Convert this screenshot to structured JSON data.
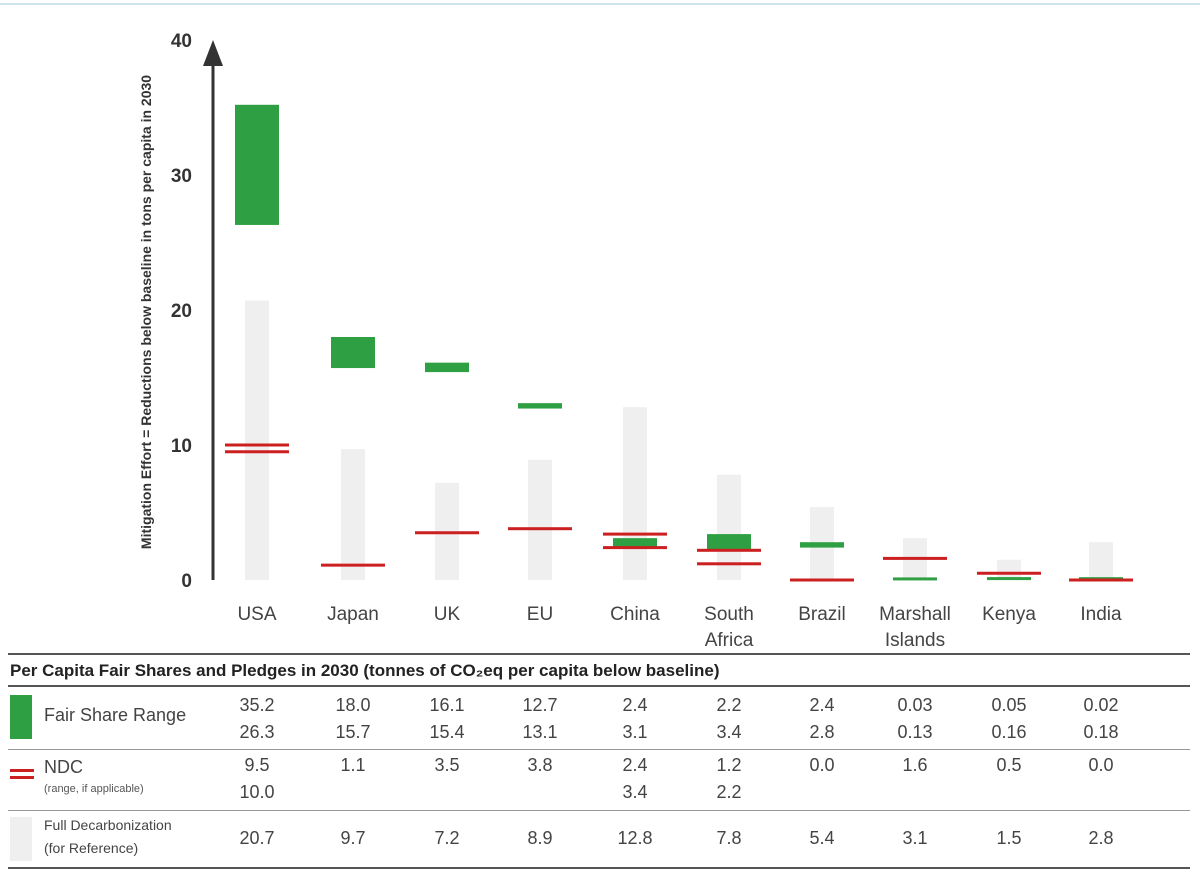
{
  "chart_data": {
    "type": "bar",
    "title": "",
    "ylabel": "Mitigation Effort = Reductions  below baseline in tons per capita in 2030",
    "xlabel": "",
    "ylim": [
      0,
      40
    ],
    "yticks": [
      "0",
      "10",
      "20",
      "30",
      "40"
    ],
    "categories": [
      {
        "lines": [
          "USA"
        ]
      },
      {
        "lines": [
          "Japan"
        ]
      },
      {
        "lines": [
          "UK"
        ]
      },
      {
        "lines": [
          "EU"
        ]
      },
      {
        "lines": [
          "China"
        ]
      },
      {
        "lines": [
          "South",
          "Africa"
        ]
      },
      {
        "lines": [
          "Brazil"
        ]
      },
      {
        "lines": [
          "Marshall",
          "Islands"
        ]
      },
      {
        "lines": [
          "Kenya"
        ]
      },
      {
        "lines": [
          "India"
        ]
      }
    ],
    "series": [
      {
        "name": "Fair Share Range",
        "kind": "range",
        "color": "#2ea043",
        "values": [
          [
            26.3,
            35.2
          ],
          [
            15.7,
            18.0
          ],
          [
            15.4,
            16.1
          ],
          [
            12.7,
            13.1
          ],
          [
            2.4,
            3.1
          ],
          [
            2.2,
            3.4
          ],
          [
            2.4,
            2.8
          ],
          [
            0.03,
            0.13
          ],
          [
            0.05,
            0.16
          ],
          [
            0.02,
            0.18
          ]
        ]
      },
      {
        "name": "NDC",
        "kind": "line",
        "color": "#cc1f1f",
        "values": [
          [
            9.5,
            10.0
          ],
          [
            1.1
          ],
          [
            3.5
          ],
          [
            3.8
          ],
          [
            2.4,
            3.4
          ],
          [
            1.2,
            2.2
          ],
          [
            0.0
          ],
          [
            1.6
          ],
          [
            0.5
          ],
          [
            0.0
          ]
        ]
      },
      {
        "name": "Full Decarbonization",
        "kind": "bar",
        "color": "#efefef",
        "values": [
          20.7,
          9.7,
          7.2,
          8.9,
          12.8,
          7.8,
          5.4,
          3.1,
          1.5,
          2.8
        ]
      }
    ]
  },
  "table": {
    "title": "Per Capita Fair Shares and Pledges in 2030 (tonnes of CO₂eq per capita below baseline)",
    "fair_share": {
      "label": "Fair Share Range",
      "top": [
        "35.2",
        "18.0",
        "16.1",
        "12.7",
        "2.4",
        "2.2",
        "2.4",
        "0.03",
        "0.05",
        "0.02"
      ],
      "bottom": [
        "26.3",
        "15.7",
        "15.4",
        "13.1",
        "3.1",
        "3.4",
        "2.8",
        "0.13",
        "0.16",
        "0.18"
      ]
    },
    "ndc": {
      "label": "NDC",
      "sublabel": "(range, if applicable)",
      "top": [
        "9.5",
        "1.1",
        "3.5",
        "3.8",
        "2.4",
        "1.2",
        "0.0",
        "1.6",
        "0.5",
        "0.0"
      ],
      "bottom": [
        "10.0",
        "",
        "",
        "",
        "3.4",
        "2.2",
        "",
        "",
        "",
        ""
      ]
    },
    "full": {
      "label_line1": "Full Decarbonization",
      "label_line2": "(for Reference)",
      "values": [
        "20.7",
        "9.7",
        "7.2",
        "8.9",
        "12.8",
        "7.8",
        "5.4",
        "3.1",
        "1.5",
        "2.8"
      ]
    }
  }
}
